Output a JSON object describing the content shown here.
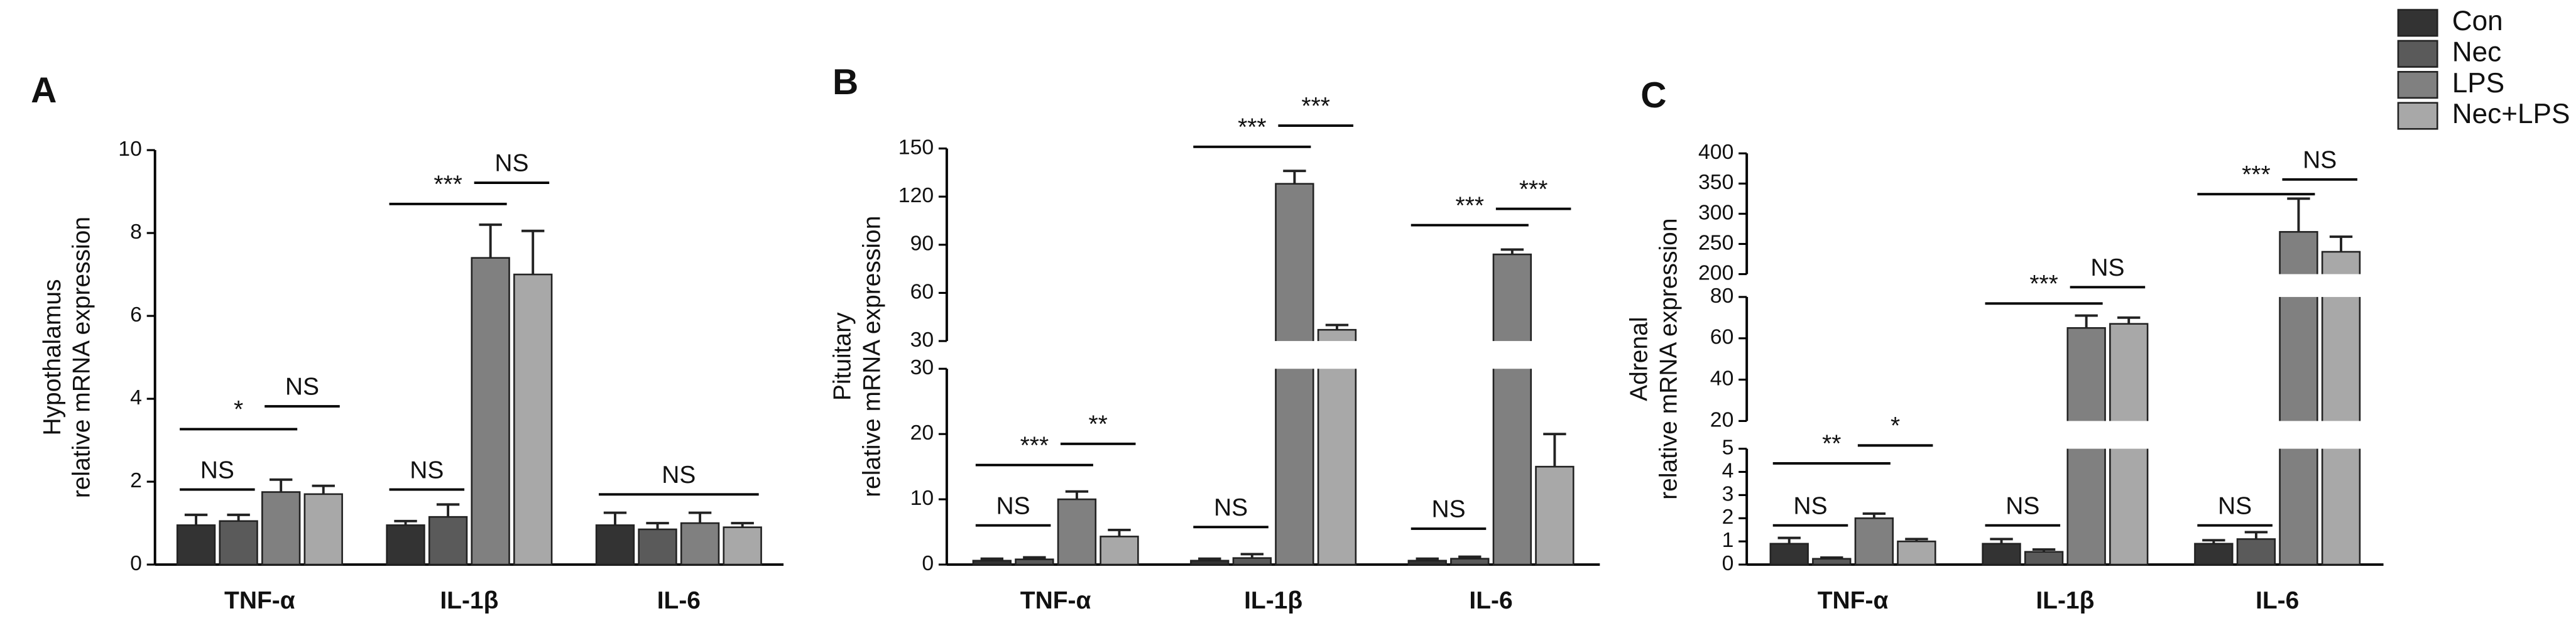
{
  "chart_data": [
    {
      "type": "bar",
      "panel": "A",
      "ylabel": [
        "Hypothalamus",
        "relative mRNA expression"
      ],
      "categories": [
        "TNF-α",
        "IL-1β",
        "IL-6"
      ],
      "segments": [
        {
          "ylim": [
            0,
            10
          ],
          "yticks": [
            0,
            2,
            4,
            6,
            8,
            10
          ]
        }
      ],
      "legend": "upper right",
      "series": [
        {
          "name": "Con",
          "color": "#333333",
          "values": [
            0.95,
            0.95,
            0.95
          ],
          "errors": [
            0.25,
            0.1,
            0.3
          ]
        },
        {
          "name": "Nec",
          "color": "#5a5a5a",
          "values": [
            1.05,
            1.15,
            0.85
          ],
          "errors": [
            0.15,
            0.3,
            0.15
          ]
        },
        {
          "name": "LPS",
          "color": "#808080",
          "values": [
            1.75,
            7.4,
            1.0
          ],
          "errors": [
            0.3,
            0.8,
            0.25
          ]
        },
        {
          "name": "Nec+LPS",
          "color": "#a8a8a8",
          "values": [
            1.7,
            7.0,
            0.9
          ],
          "errors": [
            0.2,
            1.05,
            0.1
          ]
        }
      ],
      "annotations": [
        "NS",
        "*",
        "NS",
        "NS",
        "***",
        "NS",
        "NS"
      ]
    },
    {
      "type": "bar",
      "panel": "B",
      "ylabel": [
        "Pituitary",
        "relative mRNA expression"
      ],
      "categories": [
        "TNF-α",
        "IL-1β",
        "IL-6"
      ],
      "segments": [
        {
          "ylim": [
            0,
            30
          ],
          "yticks": [
            0,
            10,
            20,
            30
          ]
        },
        {
          "ylim": [
            30,
            150
          ],
          "yticks": [
            30,
            60,
            90,
            120,
            150
          ]
        }
      ],
      "series": [
        {
          "name": "Con",
          "color": "#333333",
          "values": [
            0.6,
            0.6,
            0.6
          ],
          "errors": [
            0.3,
            0.3,
            0.3
          ]
        },
        {
          "name": "Nec",
          "color": "#5a5a5a",
          "values": [
            0.8,
            1.0,
            0.9
          ],
          "errors": [
            0.3,
            0.6,
            0.3
          ]
        },
        {
          "name": "LPS",
          "color": "#808080",
          "values": [
            10,
            128,
            84
          ],
          "errors": [
            1.2,
            8,
            3
          ]
        },
        {
          "name": "Nec+LPS",
          "color": "#a8a8a8",
          "values": [
            4.3,
            37,
            15
          ],
          "errors": [
            1,
            3,
            5
          ]
        }
      ],
      "annotations": [
        "NS",
        "***",
        "**",
        "NS",
        "***",
        "***",
        "NS",
        "***",
        "***"
      ]
    },
    {
      "type": "bar",
      "panel": "C",
      "ylabel": [
        "Adrenal",
        "relative mRNA expression"
      ],
      "categories": [
        "TNF-α",
        "IL-1β",
        "IL-6"
      ],
      "segments": [
        {
          "ylim": [
            0,
            5
          ],
          "yticks": [
            0,
            1,
            2,
            3,
            4,
            5
          ]
        },
        {
          "ylim": [
            20,
            80
          ],
          "yticks": [
            20,
            40,
            60,
            80
          ]
        },
        {
          "ylim": [
            200,
            400
          ],
          "yticks": [
            200,
            250,
            300,
            350,
            400
          ]
        }
      ],
      "series": [
        {
          "name": "Con",
          "color": "#333333",
          "values": [
            0.9,
            0.9,
            0.9
          ],
          "errors": [
            0.25,
            0.2,
            0.15
          ]
        },
        {
          "name": "Nec",
          "color": "#5a5a5a",
          "values": [
            0.25,
            0.55,
            1.1
          ],
          "errors": [
            0.05,
            0.1,
            0.3
          ]
        },
        {
          "name": "LPS",
          "color": "#808080",
          "values": [
            2.0,
            65,
            270
          ],
          "errors": [
            0.2,
            6,
            55
          ]
        },
        {
          "name": "Nec+LPS",
          "color": "#a8a8a8",
          "values": [
            1.0,
            67,
            237
          ],
          "errors": [
            0.1,
            3,
            25
          ]
        }
      ],
      "annotations": [
        "NS",
        "**",
        "*",
        "NS",
        "***",
        "NS",
        "NS",
        "***",
        "NS"
      ]
    }
  ]
}
